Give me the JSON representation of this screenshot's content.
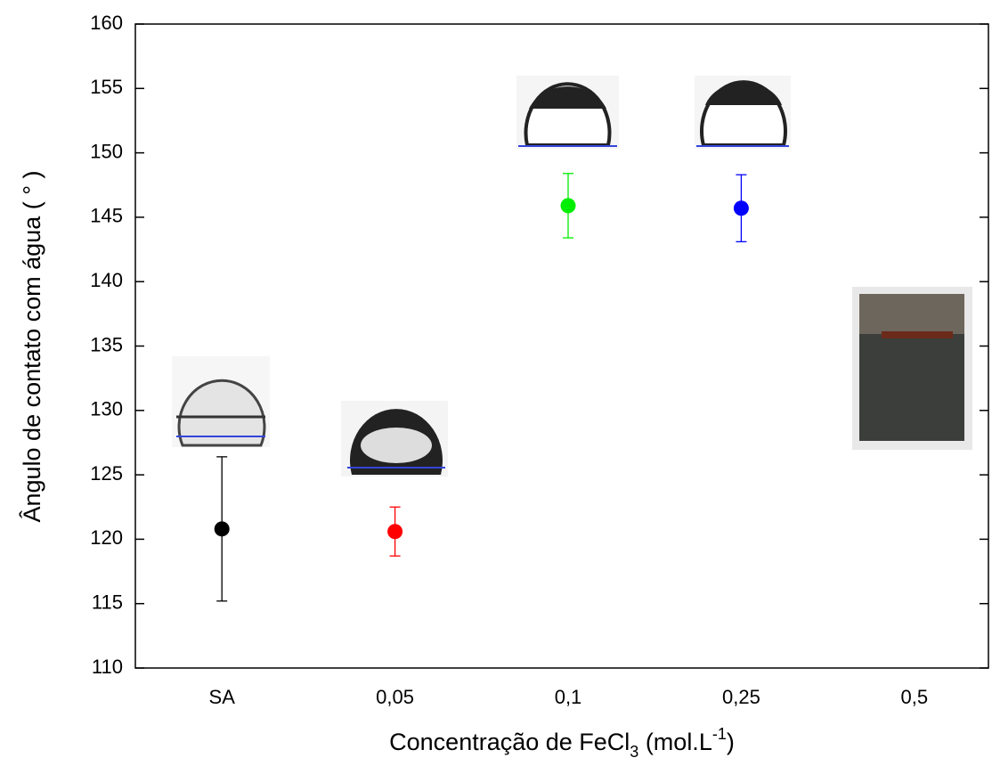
{
  "chart_data": {
    "type": "scatter",
    "y_label": "Ângulo de contato com água ( ° )",
    "x_label_parts": [
      "Concentração de FeCl",
      "3",
      " (mol.L",
      "-1",
      ")"
    ],
    "categories": [
      "SA",
      "0,05",
      "0,1",
      "0,25",
      "0,5"
    ],
    "values": [
      120.8,
      120.6,
      145.9,
      145.7,
      null
    ],
    "errors": [
      5.6,
      1.9,
      2.5,
      2.6,
      null
    ],
    "colors": [
      "#000000",
      "#ff0000",
      "#00ee00",
      "#0000ff",
      null
    ],
    "ylim": [
      110,
      160
    ],
    "yticks": [
      110,
      115,
      120,
      125,
      130,
      135,
      140,
      145,
      150,
      155,
      160
    ]
  }
}
